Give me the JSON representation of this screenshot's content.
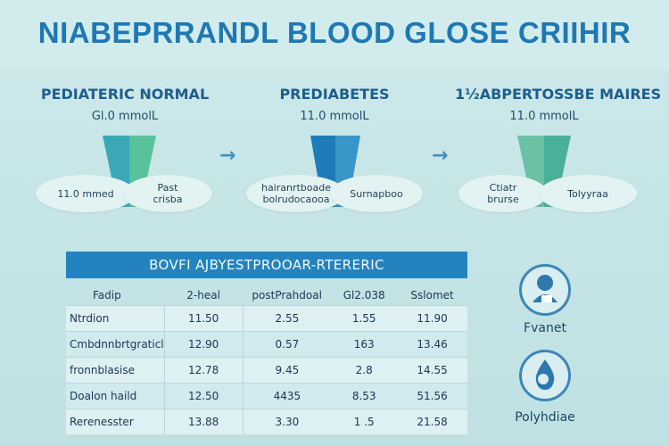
{
  "title": "NIABEPRRANDL BLOOD GLOSE CRIIHIR",
  "stages": [
    {
      "title": "PEDIATERIC NORMAL",
      "sub": "Gl.0 mmolL",
      "bubble_left": "11.0 mmed",
      "bubble_right": "Past\ncrisba",
      "colors": {
        "left": "#3aa9b5",
        "right": "#58c29a"
      }
    },
    {
      "title": "PREDIABETES",
      "sub": "11.0 mmolL",
      "bubble_left": "hairanrtboade\nbolrudocaooa",
      "bubble_right": "Surnapboo",
      "colors": {
        "left": "#1f7cb8",
        "right": "#3a95c9"
      }
    },
    {
      "title": "1½ABPERTOSSBE MAIRES",
      "sub": "11.0 mmolL",
      "bubble_left": "Ctiatr\nbrurse",
      "bubble_right": "Tolyyraa",
      "colors": {
        "left": "#6bc1a3",
        "right": "#4ab09c"
      }
    }
  ],
  "arrows": [
    "→",
    "→"
  ],
  "table": {
    "header": "BOVFI AJBYESTPROOAR-RTERERIC",
    "columns": [
      "Fadip",
      "2-heal",
      "postPrahdoal",
      "Gl2.038",
      "Sslomet"
    ],
    "rows": [
      [
        "Ntrdion",
        "11.50",
        "2.55",
        "1.55",
        "11.90"
      ],
      [
        "Cmbdnnbrtgraticl",
        "12.90",
        "0.57",
        "163",
        "13.46"
      ],
      [
        "fronnblasise",
        "12.78",
        "9.45",
        "2.8",
        "14.55"
      ],
      [
        "Doalon haild",
        "12.50",
        "4435",
        "8.53",
        "51.56"
      ],
      [
        "Rerenesster",
        "13.88",
        "3.30",
        "1 .5",
        "21.58"
      ]
    ]
  },
  "icons": [
    {
      "name": "person-icon",
      "label": "Fvanet"
    },
    {
      "name": "drop-icon",
      "label": "Polyhdiae"
    }
  ]
}
